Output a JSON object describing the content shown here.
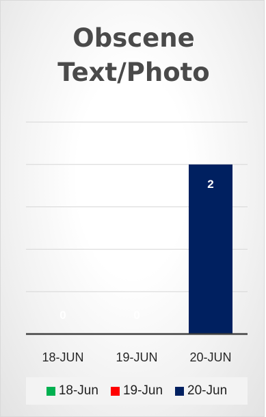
{
  "title_lines": [
    "Obscene",
    "Text/Photo"
  ],
  "chart_data": {
    "type": "bar",
    "title": "Obscene Text/Photo",
    "categories": [
      "18-JUN",
      "19-JUN",
      "20-JUN"
    ],
    "values": [
      0,
      0,
      2
    ],
    "data_labels": [
      "0",
      "0",
      "2"
    ],
    "bar_colors": [
      "#00b050",
      "#ff0000",
      "#002060"
    ],
    "label_colors": [
      "#ffffff",
      "#ffffff",
      "#ffffff"
    ],
    "ylim": [
      0,
      2.5
    ],
    "ytick_step": 0.5,
    "grid": true,
    "legend_position": "bottom",
    "legend": [
      {
        "label": "18-Jun",
        "color": "#00b050"
      },
      {
        "label": "19-Jun",
        "color": "#ff0000"
      },
      {
        "label": "20-Jun",
        "color": "#002060"
      }
    ]
  }
}
